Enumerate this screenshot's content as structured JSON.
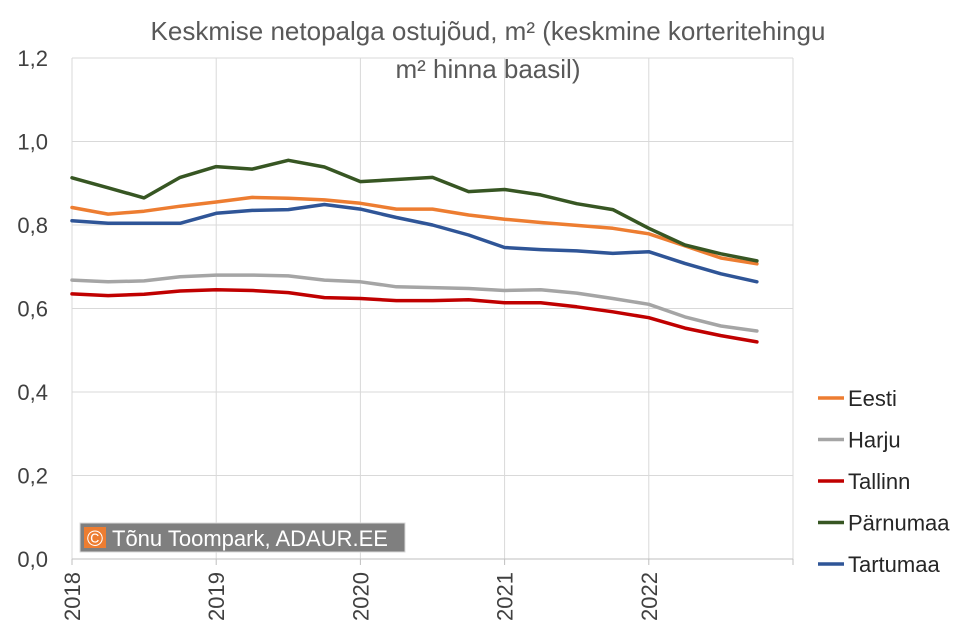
{
  "chart_data": {
    "type": "line",
    "title_line1": "Keskmise netopalga ostujõud, m² (keskmine korteritehingu",
    "title_line2": "m² hinna baasil)",
    "xlabel": "",
    "ylabel": "",
    "ylim": [
      0,
      1.2
    ],
    "yticks": [
      "0,0",
      "0,2",
      "0,4",
      "0,6",
      "0,8",
      "1,0",
      "1,2"
    ],
    "xticks": [
      "2018",
      "2019",
      "2020",
      "2021",
      "2022"
    ],
    "grid": true,
    "legend_position": "right",
    "x": [
      2018.0,
      2018.25,
      2018.5,
      2018.75,
      2019.0,
      2019.25,
      2019.5,
      2019.75,
      2020.0,
      2020.25,
      2020.5,
      2020.75,
      2021.0,
      2021.25,
      2021.5,
      2021.75,
      2022.0,
      2022.25,
      2022.5,
      2022.75
    ],
    "series": [
      {
        "name": "Eesti",
        "color": "#ED7D31",
        "values": [
          0.842,
          0.826,
          0.833,
          0.845,
          0.855,
          0.866,
          0.864,
          0.86,
          0.852,
          0.838,
          0.838,
          0.824,
          0.814,
          0.806,
          0.799,
          0.792,
          0.779,
          0.75,
          0.721,
          0.707
        ]
      },
      {
        "name": "Harju",
        "color": "#A5A5A5",
        "values": [
          0.668,
          0.664,
          0.666,
          0.676,
          0.68,
          0.68,
          0.678,
          0.668,
          0.664,
          0.652,
          0.65,
          0.648,
          0.643,
          0.645,
          0.637,
          0.624,
          0.61,
          0.58,
          0.558,
          0.546
        ]
      },
      {
        "name": "Tallinn",
        "color": "#C00000",
        "values": [
          0.635,
          0.631,
          0.634,
          0.642,
          0.645,
          0.643,
          0.638,
          0.626,
          0.624,
          0.619,
          0.619,
          0.621,
          0.614,
          0.614,
          0.604,
          0.592,
          0.578,
          0.553,
          0.535,
          0.52
        ]
      },
      {
        "name": "Pärnumaa",
        "color": "#375623",
        "values": [
          0.913,
          0.889,
          0.865,
          0.914,
          0.94,
          0.934,
          0.955,
          0.939,
          0.904,
          0.909,
          0.914,
          0.88,
          0.885,
          0.872,
          0.851,
          0.837,
          0.792,
          0.752,
          0.731,
          0.714
        ]
      },
      {
        "name": "Tartumaa",
        "color": "#2F5597",
        "values": [
          0.81,
          0.804,
          0.804,
          0.804,
          0.828,
          0.835,
          0.837,
          0.849,
          0.838,
          0.818,
          0.8,
          0.776,
          0.746,
          0.741,
          0.738,
          0.732,
          0.736,
          0.708,
          0.683,
          0.664
        ]
      }
    ],
    "annotations": [
      {
        "text": "Tõnu Toompark, ADAUR.EE",
        "symbol": "©"
      }
    ]
  }
}
